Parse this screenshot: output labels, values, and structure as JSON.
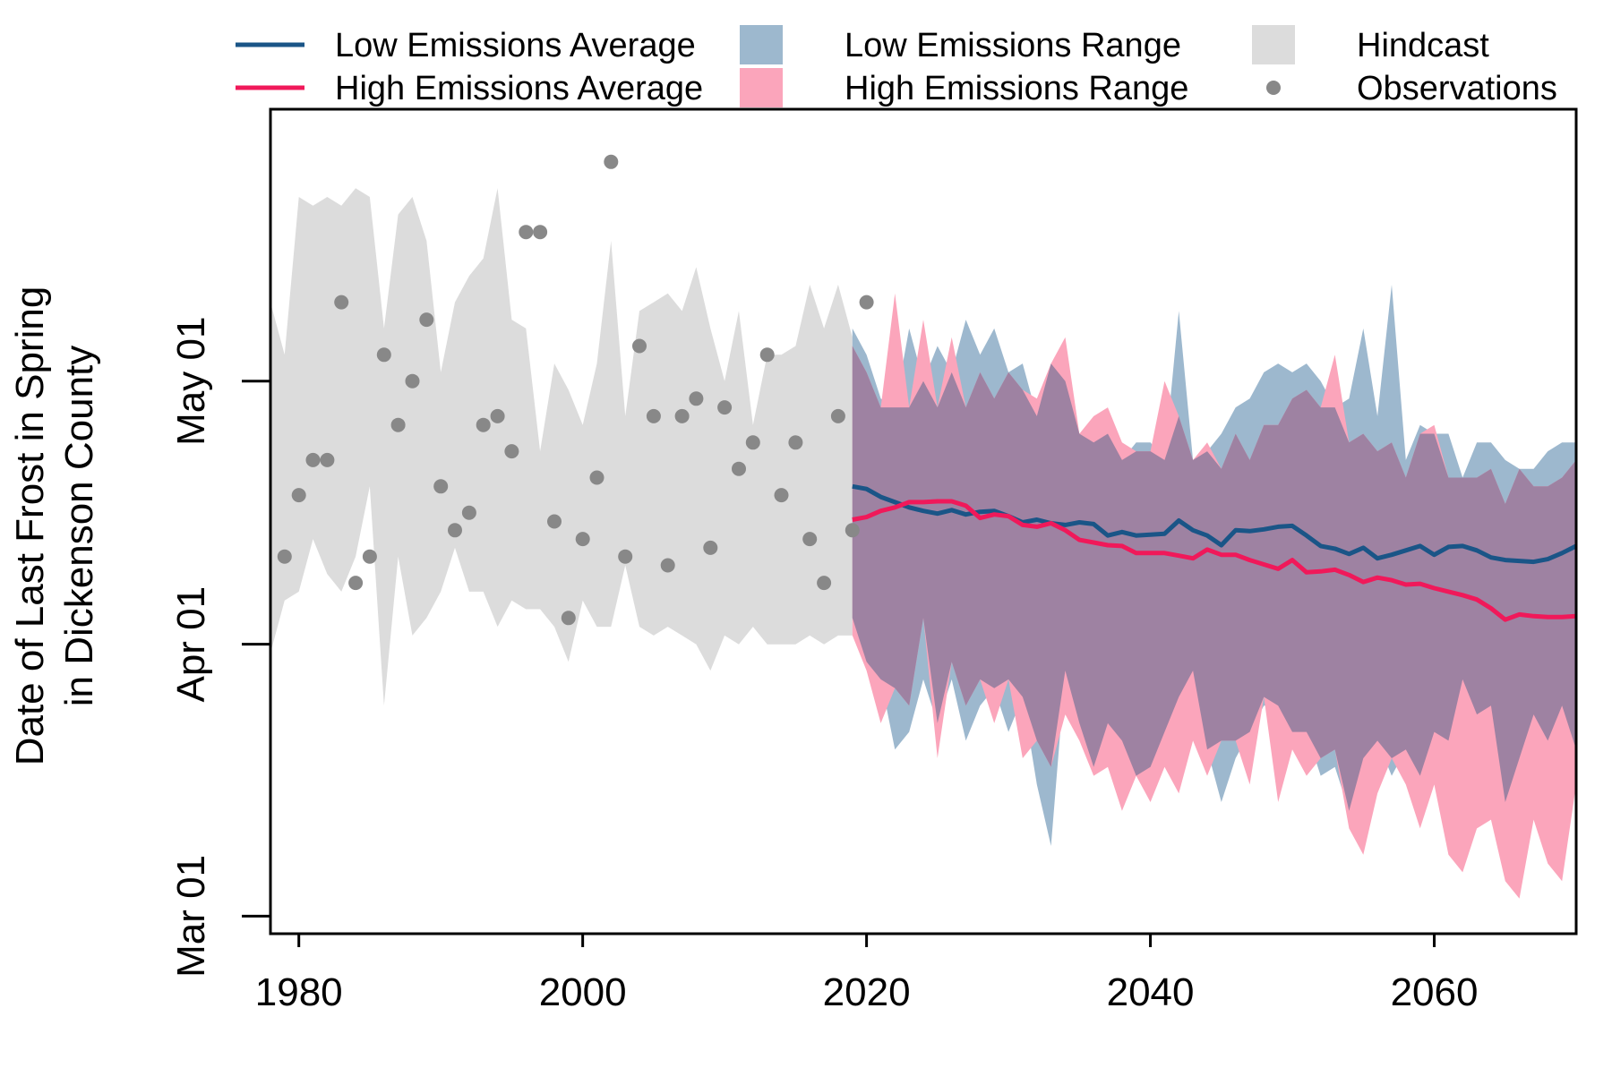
{
  "chart_data": {
    "type": "line",
    "title": "",
    "ylabel_lines": [
      "Date of Last Frost in Spring",
      "in Dickenson County"
    ],
    "xlim": [
      1978,
      2070
    ],
    "ylim_day_of_year": [
      58,
      152
    ],
    "x_ticks": [
      1980,
      2000,
      2020,
      2040,
      2060
    ],
    "x_tick_labels": [
      "1980",
      "2000",
      "2020",
      "2040",
      "2060"
    ],
    "y_ticks": [
      60,
      91,
      121
    ],
    "y_tick_labels": [
      "Mar 01",
      "Apr 01",
      "May 01"
    ],
    "grid": false,
    "legend_position": "top",
    "colors": {
      "low": "#1a5587",
      "high": "#f0195a",
      "low_range": "#9db8ce",
      "high_range": "#fba5bb",
      "overlap": "#9e82a2",
      "hindcast": "#dcdcdc",
      "observations": "#888888"
    },
    "legend": [
      {
        "key": "low_avg",
        "label": "Low Emissions Average",
        "kind": "line",
        "color": "#1a5587"
      },
      {
        "key": "high_avg",
        "label": "High Emissions Average",
        "kind": "line",
        "color": "#f0195a"
      },
      {
        "key": "low_range",
        "label": "Low Emissions Range",
        "kind": "box",
        "color": "#9db8ce"
      },
      {
        "key": "high_range",
        "label": "High Emissions Range",
        "kind": "box",
        "color": "#fba5bb"
      },
      {
        "key": "hindcast",
        "label": "Hindcast",
        "kind": "box",
        "color": "#dcdcdc"
      },
      {
        "key": "obs",
        "label": "Observations",
        "kind": "point",
        "color": "#888888"
      }
    ],
    "hindcast": {
      "x": [
        1978,
        1979,
        1980,
        1981,
        1982,
        1983,
        1984,
        1985,
        1986,
        1987,
        1988,
        1989,
        1990,
        1991,
        1992,
        1993,
        1994,
        1995,
        1996,
        1997,
        1998,
        1999,
        2000,
        2001,
        2002,
        2003,
        2004,
        2005,
        2006,
        2007,
        2008,
        2009,
        2010,
        2011,
        2012,
        2013,
        2014,
        2015,
        2016,
        2017,
        2018,
        2019
      ],
      "upper": [
        130,
        124,
        142,
        141,
        142,
        141,
        143,
        142,
        127,
        140,
        142,
        137,
        122,
        130,
        133,
        135,
        143,
        128,
        127,
        113,
        123,
        120,
        116,
        123,
        137,
        117,
        129,
        130,
        131,
        129,
        134,
        127,
        121,
        129,
        116,
        124,
        124,
        125,
        132,
        127,
        132,
        126
      ],
      "lower": [
        90,
        96,
        97,
        103,
        99,
        97,
        101,
        109,
        84,
        101,
        92,
        94,
        97,
        102,
        97,
        97,
        93,
        96,
        95,
        95,
        93,
        89,
        96,
        93,
        93,
        100,
        93,
        92,
        93,
        92,
        91,
        88,
        92,
        91,
        93,
        91,
        91,
        91,
        92,
        91,
        92,
        92
      ]
    },
    "observations": {
      "x": [
        1979,
        1980,
        1981,
        1982,
        1983,
        1984,
        1985,
        1986,
        1987,
        1988,
        1989,
        1990,
        1991,
        1992,
        1993,
        1994,
        1995,
        1996,
        1997,
        1998,
        1999,
        2000,
        2001,
        2002,
        2003,
        2004,
        2005,
        2006,
        2007,
        2008,
        2009,
        2010,
        2011,
        2012,
        2013,
        2014,
        2015,
        2016,
        2017,
        2018,
        2019,
        2020
      ],
      "y": [
        101,
        108,
        112,
        112,
        130,
        98,
        101,
        124,
        116,
        121,
        128,
        109,
        104,
        106,
        116,
        117,
        113,
        138,
        138,
        105,
        94,
        103,
        110,
        146,
        101,
        125,
        117,
        100,
        117,
        119,
        102,
        118,
        111,
        114,
        124,
        108,
        114,
        103,
        98,
        117,
        104,
        130
      ]
    },
    "low_range": {
      "x": [
        2019,
        2020,
        2021,
        2022,
        2023,
        2024,
        2025,
        2026,
        2027,
        2028,
        2029,
        2030,
        2031,
        2032,
        2033,
        2034,
        2035,
        2036,
        2037,
        2038,
        2039,
        2040,
        2041,
        2042,
        2043,
        2044,
        2045,
        2046,
        2047,
        2048,
        2049,
        2050,
        2051,
        2052,
        2053,
        2054,
        2055,
        2056,
        2057,
        2058,
        2059,
        2060,
        2061,
        2062,
        2063,
        2064,
        2065,
        2066,
        2067,
        2068,
        2069,
        2070
      ],
      "upper": [
        127,
        124,
        119,
        118,
        127,
        121,
        125,
        122,
        128,
        124,
        127,
        122,
        123,
        117,
        123,
        121,
        115,
        114,
        115,
        112,
        114,
        114,
        112,
        129,
        112,
        113,
        115,
        118,
        119,
        122,
        123,
        122,
        123,
        121,
        118,
        119,
        127,
        117,
        132,
        112,
        116,
        115,
        115,
        110,
        114,
        114,
        112,
        111,
        111,
        113,
        114,
        114
      ],
      "lower": [
        94,
        89,
        87,
        79,
        81,
        87,
        82,
        87,
        80,
        84,
        86,
        81,
        85,
        75,
        68,
        88,
        82,
        77,
        82,
        80,
        76,
        77,
        81,
        85,
        88,
        79,
        73,
        78,
        81,
        84,
        84,
        81,
        81,
        76,
        77,
        72,
        78,
        80,
        76,
        79,
        76,
        81,
        80,
        87,
        83,
        84,
        73,
        78,
        83,
        80,
        84,
        79
      ]
    },
    "high_range": {
      "x": [
        2019,
        2020,
        2021,
        2022,
        2023,
        2024,
        2025,
        2026,
        2027,
        2028,
        2029,
        2030,
        2031,
        2032,
        2033,
        2034,
        2035,
        2036,
        2037,
        2038,
        2039,
        2040,
        2041,
        2042,
        2043,
        2044,
        2045,
        2046,
        2047,
        2048,
        2049,
        2050,
        2051,
        2052,
        2053,
        2054,
        2055,
        2056,
        2057,
        2058,
        2059,
        2060,
        2061,
        2062,
        2063,
        2064,
        2065,
        2066,
        2067,
        2068,
        2069,
        2070
      ],
      "upper": [
        125,
        122,
        118,
        131,
        118,
        128,
        118,
        126,
        118,
        122,
        119,
        122,
        120,
        119,
        123,
        126,
        115,
        117,
        118,
        114,
        113,
        113,
        121,
        117,
        112,
        114,
        111,
        115,
        112,
        116,
        116,
        119,
        120,
        118,
        124,
        114,
        115,
        113,
        114,
        110,
        115,
        116,
        110,
        110,
        110,
        111,
        107,
        111,
        109,
        109,
        110,
        112
      ],
      "lower": [
        92,
        88,
        82,
        86,
        84,
        94,
        78,
        89,
        84,
        87,
        82,
        87,
        78,
        80,
        77,
        83,
        80,
        76,
        77,
        72,
        76,
        73,
        77,
        74,
        80,
        76,
        80,
        80,
        75,
        85,
        73,
        79,
        76,
        78,
        79,
        70,
        67,
        74,
        78,
        75,
        70,
        75,
        67,
        65,
        70,
        71,
        64,
        62,
        71,
        66,
        64,
        75
      ]
    },
    "low_avg": {
      "x": [
        2019,
        2020,
        2021,
        2022,
        2023,
        2024,
        2025,
        2026,
        2027,
        2028,
        2029,
        2030,
        2031,
        2032,
        2033,
        2034,
        2035,
        2036,
        2037,
        2038,
        2039,
        2040,
        2041,
        2042,
        2043,
        2044,
        2045,
        2046,
        2047,
        2048,
        2049,
        2050,
        2051,
        2052,
        2053,
        2054,
        2055,
        2056,
        2057,
        2058,
        2059,
        2060,
        2061,
        2062,
        2063,
        2064,
        2065,
        2066,
        2067,
        2068,
        2069,
        2070
      ],
      "y": [
        109,
        108.7,
        107.8,
        107.2,
        106.6,
        106.2,
        105.9,
        106.3,
        105.8,
        106.1,
        106.2,
        105.6,
        104.9,
        105.2,
        104.8,
        104.6,
        104.9,
        104.7,
        103.4,
        103.8,
        103.4,
        103.5,
        103.6,
        105.1,
        104.0,
        103.4,
        102.3,
        104.0,
        103.9,
        104.1,
        104.4,
        104.5,
        103.4,
        102.2,
        101.9,
        101.3,
        102.0,
        100.8,
        101.2,
        101.7,
        102.2,
        101.2,
        102.1,
        102.2,
        101.7,
        100.9,
        100.6,
        100.5,
        100.4,
        100.7,
        101.4,
        102.2
      ]
    },
    "high_avg": {
      "x": [
        2019,
        2020,
        2021,
        2022,
        2023,
        2024,
        2025,
        2026,
        2027,
        2028,
        2029,
        2030,
        2031,
        2032,
        2033,
        2034,
        2035,
        2036,
        2037,
        2038,
        2039,
        2040,
        2041,
        2042,
        2043,
        2044,
        2045,
        2046,
        2047,
        2048,
        2049,
        2050,
        2051,
        2052,
        2053,
        2054,
        2055,
        2056,
        2057,
        2058,
        2059,
        2060,
        2061,
        2062,
        2063,
        2064,
        2065,
        2066,
        2067,
        2068,
        2069,
        2070
      ],
      "y": [
        105.2,
        105.5,
        106.2,
        106.6,
        107.2,
        107.2,
        107.3,
        107.3,
        106.8,
        105.4,
        105.8,
        105.6,
        104.6,
        104.4,
        104.8,
        104.0,
        102.9,
        102.6,
        102.3,
        102.2,
        101.4,
        101.4,
        101.4,
        101.1,
        100.8,
        101.8,
        101.2,
        101.2,
        100.6,
        100.1,
        99.6,
        100.6,
        99.2,
        99.3,
        99.5,
        98.9,
        98.1,
        98.6,
        98.3,
        97.8,
        97.9,
        97.4,
        97.0,
        96.6,
        96.1,
        95.1,
        93.8,
        94.4,
        94.2,
        94.1,
        94.1,
        94.2
      ]
    }
  }
}
